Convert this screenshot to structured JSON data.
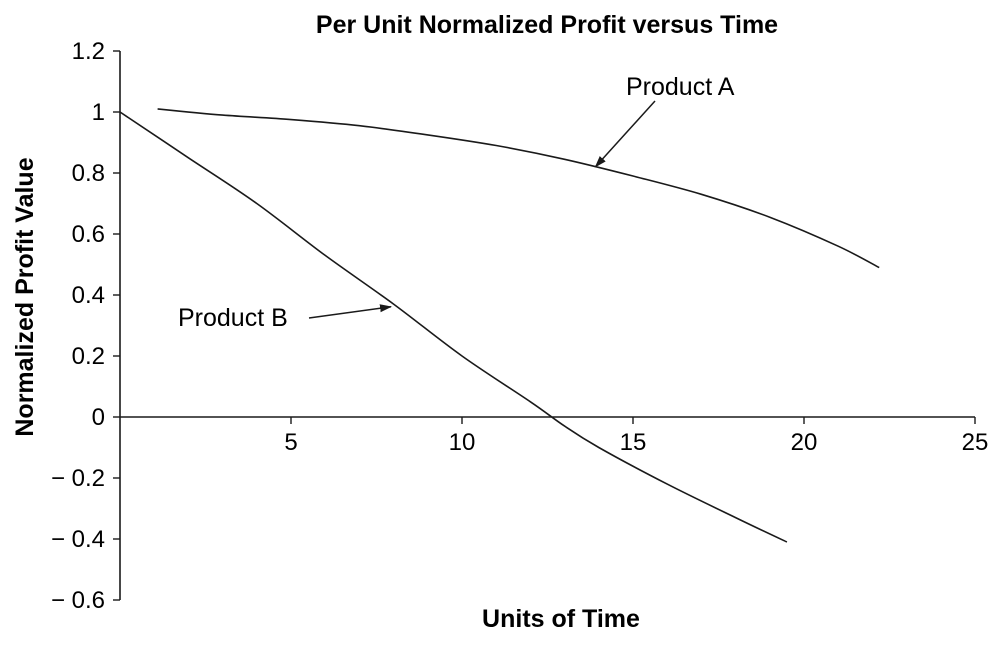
{
  "chart_data": {
    "type": "line",
    "title": "Per Unit Normalized Profit versus Time",
    "xlabel": "Units of Time",
    "ylabel": "Normalized Profit Value",
    "xlim": [
      0,
      25
    ],
    "ylim": [
      -0.6,
      1.2
    ],
    "x_ticks": [
      5,
      10,
      15,
      20,
      25
    ],
    "y_ticks": [
      1.2,
      1,
      0.8,
      0.6,
      0.4,
      0.2,
      0,
      -0.2,
      -0.4,
      -0.6
    ],
    "y_tick_labels": [
      "1.2",
      "1",
      "0.8",
      "0.6",
      "0.4",
      "0.2",
      "0",
      "− 0.2",
      "− 0.4",
      "− 0.6"
    ],
    "grid": false,
    "series": [
      {
        "name": "Product A",
        "x": [
          1.1,
          3,
          5,
          7,
          9,
          11,
          13,
          15,
          17,
          19,
          21,
          22.2
        ],
        "y": [
          1.01,
          0.99,
          0.975,
          0.955,
          0.925,
          0.89,
          0.845,
          0.79,
          0.73,
          0.655,
          0.56,
          0.49
        ]
      },
      {
        "name": "Product B",
        "x": [
          0,
          2,
          4,
          6,
          8,
          10,
          12,
          13,
          14,
          16,
          18,
          19.5
        ],
        "y": [
          1.0,
          0.85,
          0.7,
          0.53,
          0.37,
          0.2,
          0.05,
          -0.03,
          -0.1,
          -0.22,
          -0.33,
          -0.41
        ]
      }
    ],
    "annotations": [
      {
        "text": "Product A",
        "series": "Product A",
        "arrow_to_x": 13.9
      },
      {
        "text": "Product B",
        "series": "Product B",
        "arrow_to_x": 8.1
      }
    ]
  }
}
